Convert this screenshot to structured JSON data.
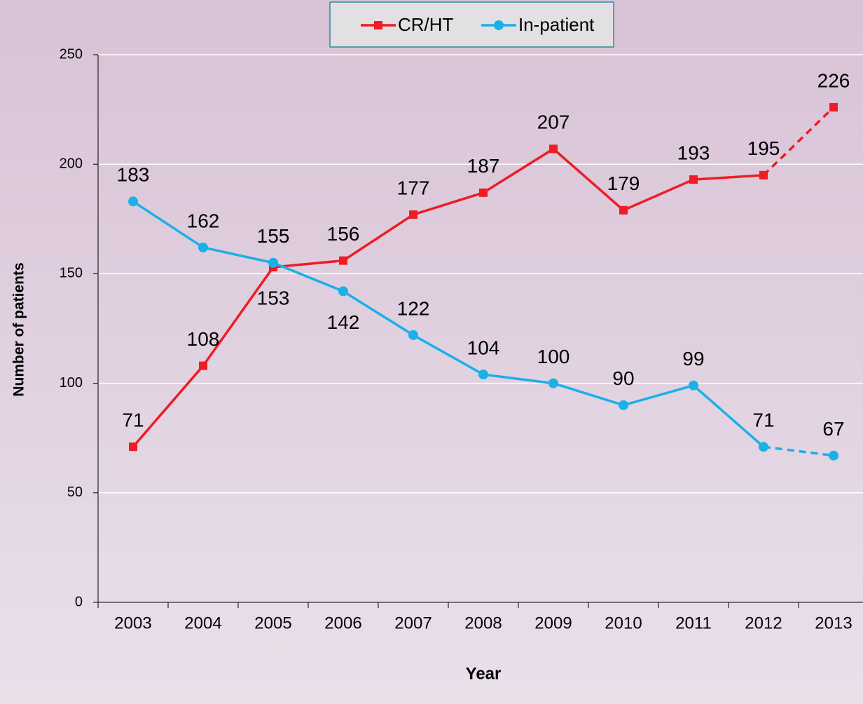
{
  "chart_data": {
    "type": "line",
    "x_label": "Year",
    "y_label": "Number of patients",
    "categories": [
      "2003",
      "2004",
      "2005",
      "2006",
      "2007",
      "2008",
      "2009",
      "2010",
      "2011",
      "2012",
      "2013"
    ],
    "series": [
      {
        "name": "CR/HT",
        "color": "#ee1c24",
        "marker": "square",
        "dashed_last": true,
        "values": [
          71,
          108,
          153,
          156,
          177,
          187,
          207,
          179,
          193,
          195,
          226
        ]
      },
      {
        "name": "In-patient",
        "color": "#1ab0e8",
        "marker": "circle",
        "dashed_last": true,
        "values": [
          183,
          162,
          155,
          142,
          122,
          104,
          100,
          90,
          99,
          71,
          67
        ]
      }
    ],
    "ylim": [
      0,
      250
    ],
    "yticks": [
      0,
      50,
      100,
      150,
      200,
      250
    ],
    "grid": true,
    "legend": "top"
  }
}
